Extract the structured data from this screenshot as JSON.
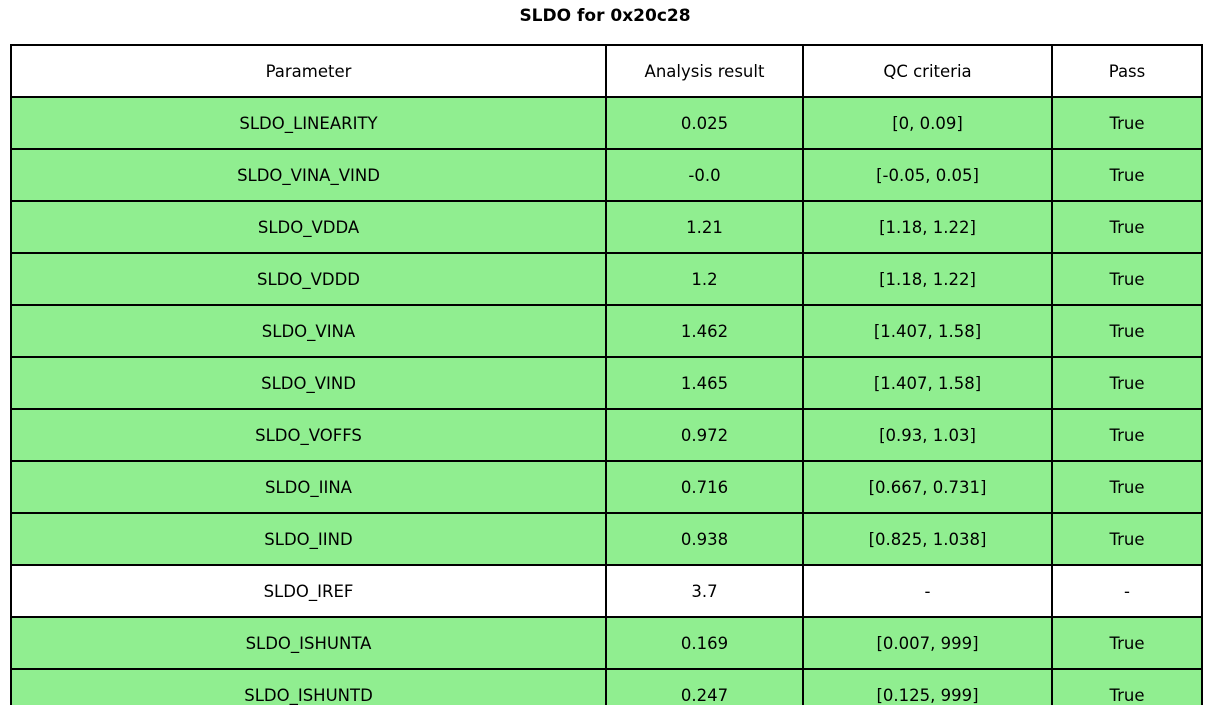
{
  "title": "SLDO for 0x20c28",
  "colors": {
    "pass_row_bg": "#90ee90",
    "neutral_row_bg": "#ffffff",
    "header_bg": "#ffffff",
    "border": "#000000",
    "text": "#000000"
  },
  "table": {
    "columns": [
      "Parameter",
      "Analysis result",
      "QC criteria",
      "Pass"
    ],
    "rows": [
      {
        "parameter": "SLDO_LINEARITY",
        "result": "0.025",
        "criteria": "[0, 0.09]",
        "pass": "True",
        "highlighted": true
      },
      {
        "parameter": "SLDO_VINA_VIND",
        "result": "-0.0",
        "criteria": "[-0.05, 0.05]",
        "pass": "True",
        "highlighted": true
      },
      {
        "parameter": "SLDO_VDDA",
        "result": "1.21",
        "criteria": "[1.18, 1.22]",
        "pass": "True",
        "highlighted": true
      },
      {
        "parameter": "SLDO_VDDD",
        "result": "1.2",
        "criteria": "[1.18, 1.22]",
        "pass": "True",
        "highlighted": true
      },
      {
        "parameter": "SLDO_VINA",
        "result": "1.462",
        "criteria": "[1.407, 1.58]",
        "pass": "True",
        "highlighted": true
      },
      {
        "parameter": "SLDO_VIND",
        "result": "1.465",
        "criteria": "[1.407, 1.58]",
        "pass": "True",
        "highlighted": true
      },
      {
        "parameter": "SLDO_VOFFS",
        "result": "0.972",
        "criteria": "[0.93, 1.03]",
        "pass": "True",
        "highlighted": true
      },
      {
        "parameter": "SLDO_IINA",
        "result": "0.716",
        "criteria": "[0.667, 0.731]",
        "pass": "True",
        "highlighted": true
      },
      {
        "parameter": "SLDO_IIND",
        "result": "0.938",
        "criteria": "[0.825, 1.038]",
        "pass": "True",
        "highlighted": true
      },
      {
        "parameter": "SLDO_IREF",
        "result": "3.7",
        "criteria": "-",
        "pass": "-",
        "highlighted": false
      },
      {
        "parameter": "SLDO_ISHUNTA",
        "result": "0.169",
        "criteria": "[0.007, 999]",
        "pass": "True",
        "highlighted": true
      },
      {
        "parameter": "SLDO_ISHUNTD",
        "result": "0.247",
        "criteria": "[0.125, 999]",
        "pass": "True",
        "highlighted": true
      }
    ]
  }
}
